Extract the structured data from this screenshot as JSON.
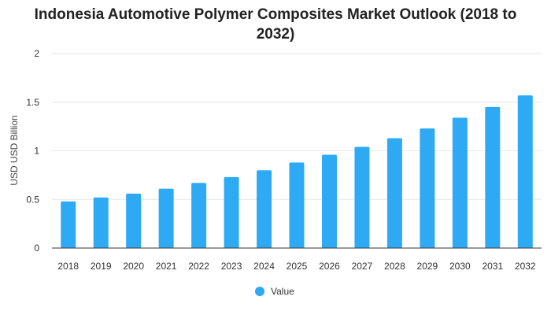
{
  "colors": {
    "series": "#2eaaf5",
    "grid": "#e6e6e6",
    "axis": "#333333"
  },
  "chart_data": {
    "type": "bar",
    "title": "Indonesia Automotive Polymer Composites Market Outlook (2018 to 2032)",
    "xlabel": "",
    "ylabel": "USD USD Billion",
    "categories": [
      "2018",
      "2019",
      "2020",
      "2021",
      "2022",
      "2023",
      "2024",
      "2025",
      "2026",
      "2027",
      "2028",
      "2029",
      "2030",
      "2031",
      "2032"
    ],
    "series": [
      {
        "name": "Value",
        "values": [
          0.48,
          0.52,
          0.56,
          0.61,
          0.67,
          0.73,
          0.8,
          0.88,
          0.96,
          1.04,
          1.13,
          1.23,
          1.34,
          1.45,
          1.57
        ]
      }
    ],
    "ylim": [
      0,
      2
    ],
    "yticks": [
      0,
      0.5,
      1,
      1.5,
      2
    ],
    "ytick_labels": [
      "0",
      "0.5",
      "1",
      "1.5",
      "2"
    ],
    "grid": true,
    "legend": "bottom-center"
  }
}
